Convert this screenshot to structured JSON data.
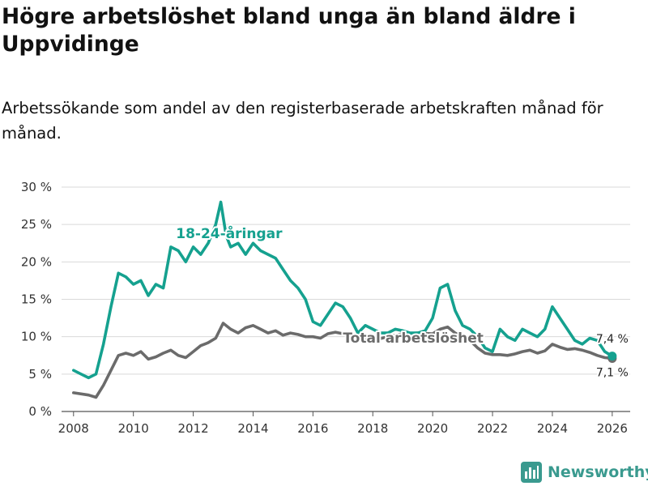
{
  "header": {
    "title": "Högre arbetslöshet bland unga än bland äldre i Uppvidinge",
    "subtitle": "Arbetssökande som andel av den registerbaserade arbetskraften månad för månad."
  },
  "brand": {
    "name": "Newsworthy",
    "icon": "bar-chart-logo-icon",
    "color": "#3a9a8f"
  },
  "chart_data": {
    "type": "line",
    "title": "Högre arbetslöshet bland unga än bland äldre i Uppvidinge",
    "xlabel": "",
    "ylabel": "",
    "xlim": [
      2007.6,
      2026.6
    ],
    "ylim": [
      0,
      30
    ],
    "x_ticks": [
      2008,
      2010,
      2012,
      2014,
      2016,
      2018,
      2020,
      2022,
      2024,
      2026
    ],
    "y_ticks": [
      {
        "value": 0,
        "label": "0 %"
      },
      {
        "value": 5,
        "label": "5 %"
      },
      {
        "value": 10,
        "label": "10 %"
      },
      {
        "value": 15,
        "label": "15 %"
      },
      {
        "value": 20,
        "label": "20 %"
      },
      {
        "value": 25,
        "label": "25 %"
      },
      {
        "value": 30,
        "label": "30 %"
      }
    ],
    "grid": true,
    "series": [
      {
        "name": "Total arbetslöshet",
        "color": "#6b6b6b",
        "label": "Total arbetslöshet",
        "end_label": "7,1 %",
        "x": [
          2008.0,
          2008.5,
          2008.75,
          2009.0,
          2009.25,
          2009.5,
          2009.75,
          2010.0,
          2010.25,
          2010.5,
          2010.75,
          2011.0,
          2011.25,
          2011.5,
          2011.75,
          2012.0,
          2012.25,
          2012.5,
          2012.75,
          2013.0,
          2013.25,
          2013.5,
          2013.75,
          2014.0,
          2014.25,
          2014.5,
          2014.75,
          2015.0,
          2015.25,
          2015.5,
          2015.75,
          2016.0,
          2016.25,
          2016.5,
          2016.75,
          2017.0,
          2017.25,
          2017.5,
          2017.75,
          2018.0,
          2018.5,
          2019.0,
          2019.5,
          2020.0,
          2020.25,
          2020.5,
          2020.75,
          2021.0,
          2021.25,
          2021.5,
          2021.75,
          2022.0,
          2022.25,
          2022.5,
          2022.75,
          2023.0,
          2023.25,
          2023.5,
          2023.75,
          2024.0,
          2024.25,
          2024.5,
          2024.75,
          2025.0,
          2025.25,
          2025.5,
          2025.75,
          2026.0
        ],
        "values": [
          2.5,
          2.2,
          1.9,
          3.5,
          5.5,
          7.5,
          7.8,
          7.5,
          8.0,
          7.0,
          7.3,
          7.8,
          8.2,
          7.5,
          7.2,
          8.0,
          8.8,
          9.2,
          9.8,
          11.8,
          11.0,
          10.5,
          11.2,
          11.5,
          11.0,
          10.5,
          10.8,
          10.2,
          10.5,
          10.3,
          10.0,
          10.0,
          9.8,
          10.4,
          10.6,
          10.4,
          10.0,
          9.7,
          9.6,
          9.5,
          10.0,
          10.4,
          10.5,
          10.4,
          11.0,
          11.3,
          10.5,
          10.0,
          9.5,
          8.5,
          7.8,
          7.6,
          7.6,
          7.5,
          7.7,
          8.0,
          8.2,
          7.8,
          8.1,
          9.0,
          8.6,
          8.3,
          8.4,
          8.2,
          7.9,
          7.5,
          7.2,
          7.1
        ]
      },
      {
        "name": "18-24-åringar",
        "color": "#15a18f",
        "label": "18-24-åringar",
        "end_label": "7,4 %",
        "x": [
          2008.0,
          2008.25,
          2008.5,
          2008.75,
          2009.0,
          2009.25,
          2009.5,
          2009.75,
          2010.0,
          2010.25,
          2010.5,
          2010.75,
          2011.0,
          2011.25,
          2011.5,
          2011.75,
          2012.0,
          2012.25,
          2012.5,
          2012.75,
          2012.92,
          2013.1,
          2013.25,
          2013.5,
          2013.75,
          2014.0,
          2014.25,
          2014.5,
          2014.75,
          2015.0,
          2015.25,
          2015.5,
          2015.75,
          2016.0,
          2016.25,
          2016.5,
          2016.75,
          2017.0,
          2017.25,
          2017.5,
          2017.75,
          2018.0,
          2018.25,
          2018.5,
          2018.75,
          2019.0,
          2019.25,
          2019.5,
          2019.75,
          2020.0,
          2020.25,
          2020.5,
          2020.75,
          2021.0,
          2021.25,
          2021.5,
          2021.75,
          2022.0,
          2022.25,
          2022.5,
          2022.75,
          2023.0,
          2023.25,
          2023.5,
          2023.75,
          2024.0,
          2024.25,
          2024.5,
          2024.75,
          2025.0,
          2025.25,
          2025.5,
          2025.75,
          2026.0
        ],
        "values": [
          5.5,
          5.0,
          4.5,
          5.0,
          9.0,
          14.0,
          18.5,
          18.0,
          17.0,
          17.5,
          15.5,
          17.0,
          16.5,
          22.0,
          21.5,
          20.0,
          22.0,
          21.0,
          22.5,
          25.0,
          28.0,
          23.5,
          22.0,
          22.5,
          21.0,
          22.5,
          21.5,
          21.0,
          20.5,
          19.0,
          17.5,
          16.5,
          15.0,
          12.0,
          11.5,
          13.0,
          14.5,
          14.0,
          12.5,
          10.5,
          11.5,
          11.0,
          10.5,
          10.5,
          11.0,
          10.8,
          10.5,
          10.5,
          10.8,
          12.5,
          16.5,
          17.0,
          13.5,
          11.5,
          11.0,
          10.0,
          8.5,
          8.0,
          11.0,
          10.0,
          9.5,
          11.0,
          10.5,
          10.0,
          11.0,
          14.0,
          12.5,
          11.0,
          9.5,
          9.0,
          9.8,
          9.5,
          8.0,
          7.4
        ]
      }
    ]
  }
}
